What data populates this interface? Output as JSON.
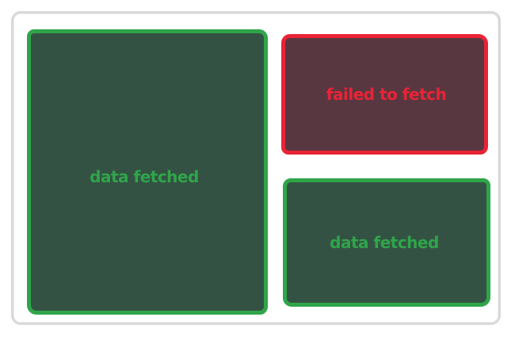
{
  "panels": [
    {
      "status": "success",
      "label": "data fetched"
    },
    {
      "status": "error",
      "label": "failed to fetch"
    },
    {
      "status": "success",
      "label": "data fetched"
    }
  ],
  "colors": {
    "success_border": "#2fa54a",
    "success_fill": "#345244",
    "error_border": "#ea2336",
    "error_fill": "#593740",
    "frame_border": "#d9d9d9"
  }
}
